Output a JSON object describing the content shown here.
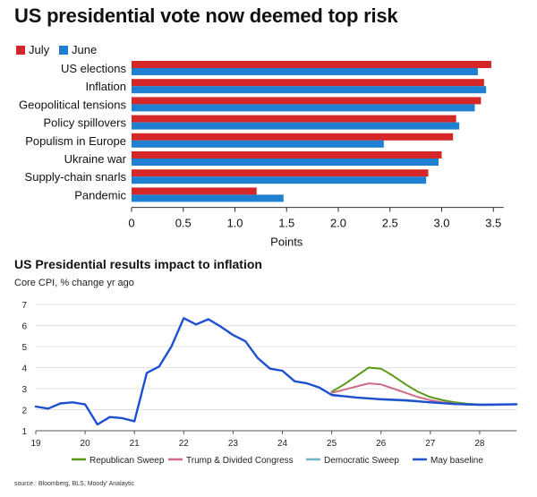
{
  "chart_data": [
    {
      "type": "bar",
      "orientation": "horizontal",
      "title": "US presidential vote now deemed top risk",
      "xlabel": "Points",
      "ylabel": "",
      "xlim": [
        0,
        3.6
      ],
      "xticks": [
        "0",
        "0.5",
        "1.0",
        "1.5",
        "2.0",
        "2.5",
        "3.0",
        "3.5"
      ],
      "xtick_values": [
        0,
        0.5,
        1.0,
        1.5,
        2.0,
        2.5,
        3.0,
        3.5
      ],
      "categories": [
        "US elections",
        "Inflation",
        "Geopolitical tensions",
        "Policy spillovers",
        "Populism in Europe",
        "Ukraine war",
        "Supply-chain snarls",
        "Pandemic"
      ],
      "series": [
        {
          "name": "July",
          "color": "#d62728",
          "values": [
            3.48,
            3.41,
            3.38,
            3.14,
            3.11,
            3.0,
            2.87,
            1.21
          ]
        },
        {
          "name": "June",
          "color": "#1f7fd1",
          "values": [
            3.35,
            3.43,
            3.32,
            3.17,
            2.44,
            2.97,
            2.85,
            1.47
          ]
        }
      ],
      "legend_position": "top-left",
      "grid": false
    },
    {
      "type": "line",
      "title": "US Presidential results impact to inflation",
      "subtitle": "Core CPI, % change yr ago",
      "xlabel": "",
      "ylabel": "",
      "xlim": [
        19,
        28.75
      ],
      "ylim": [
        1,
        7
      ],
      "xticks": [
        "19",
        "20",
        "21",
        "22",
        "23",
        "24",
        "25",
        "26",
        "27",
        "28"
      ],
      "xtick_values": [
        19,
        20,
        21,
        22,
        23,
        24,
        25,
        26,
        27,
        28
      ],
      "yticks": [
        "1",
        "2",
        "3",
        "4",
        "5",
        "6",
        "7"
      ],
      "ytick_values": [
        1,
        2,
        3,
        4,
        5,
        6,
        7
      ],
      "grid": true,
      "legend_position": "bottom",
      "series": [
        {
          "name": "Republican Sweep",
          "color": "#5a9a1a",
          "x": [
            25.0,
            25.25,
            25.5,
            25.75,
            26.0,
            26.25,
            26.5,
            26.75,
            27.0,
            27.25,
            27.5,
            27.75,
            28.0,
            28.25,
            28.5,
            28.75
          ],
          "y": [
            2.85,
            3.2,
            3.6,
            4.0,
            3.95,
            3.6,
            3.2,
            2.85,
            2.6,
            2.45,
            2.35,
            2.28,
            2.25,
            2.24,
            2.25,
            2.26
          ]
        },
        {
          "name": "Trump & Divided Congress",
          "color": "#d06c87",
          "x": [
            25.0,
            25.25,
            25.5,
            25.75,
            26.0,
            26.25,
            26.5,
            26.75,
            27.0,
            27.25,
            27.5,
            27.75,
            28.0,
            28.25,
            28.5,
            28.75
          ],
          "y": [
            2.8,
            2.95,
            3.1,
            3.25,
            3.2,
            3.0,
            2.8,
            2.6,
            2.45,
            2.35,
            2.28,
            2.24,
            2.22,
            2.22,
            2.24,
            2.26
          ]
        },
        {
          "name": "Democratic Sweep",
          "color": "#6fb3c9",
          "x": [
            25.0,
            25.5,
            26.0,
            26.5,
            27.0,
            27.5,
            28.0,
            28.5,
            28.75
          ],
          "y": [
            2.68,
            2.58,
            2.48,
            2.42,
            2.35,
            2.27,
            2.22,
            2.23,
            2.25
          ]
        },
        {
          "name": "May baseline",
          "color": "#1f4fd1",
          "x": [
            19.0,
            19.25,
            19.5,
            19.75,
            20.0,
            20.25,
            20.5,
            20.75,
            21.0,
            21.25,
            21.5,
            21.75,
            22.0,
            22.25,
            22.5,
            22.75,
            23.0,
            23.25,
            23.5,
            23.75,
            24.0,
            24.25,
            24.5,
            24.75,
            25.0,
            25.5,
            26.0,
            26.5,
            27.0,
            27.5,
            28.0,
            28.5,
            28.75
          ],
          "y": [
            2.15,
            2.05,
            2.3,
            2.35,
            2.25,
            1.3,
            1.65,
            1.6,
            1.45,
            3.75,
            4.05,
            5.0,
            6.35,
            6.05,
            6.3,
            5.95,
            5.55,
            5.25,
            4.45,
            3.95,
            3.85,
            3.35,
            3.25,
            3.05,
            2.7,
            2.58,
            2.5,
            2.45,
            2.35,
            2.27,
            2.24,
            2.25,
            2.26
          ]
        }
      ]
    }
  ],
  "source": "source : Bloomberg, BLS, Moody' Analaytic"
}
